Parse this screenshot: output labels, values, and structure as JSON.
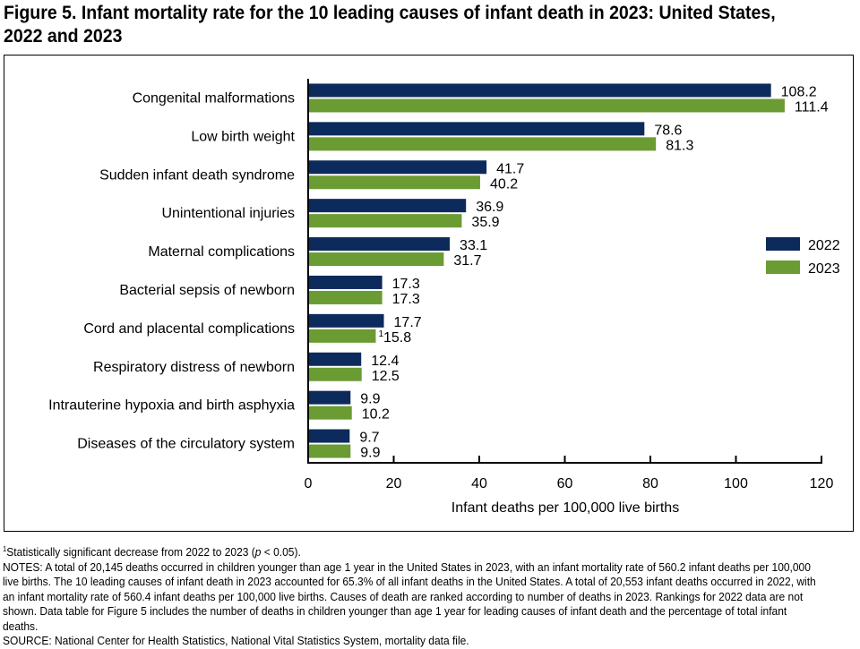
{
  "chart_data": {
    "type": "bar",
    "orientation": "horizontal",
    "title": "Figure 5. Infant mortality rate for the 10 leading causes of infant death in 2023: United States, 2022 and 2023",
    "xlabel": "Infant deaths per 100,000 live births",
    "ylabel": "",
    "xlim": [
      0,
      120
    ],
    "xticks": [
      "0",
      "20",
      "40",
      "60",
      "80",
      "100",
      "120"
    ],
    "grid": false,
    "legend_position": "right",
    "categories": [
      "Congenital malformations",
      "Low birth weight",
      "Sudden infant death syndrome",
      "Unintentional injuries",
      "Maternal complications",
      "Bacterial sepsis of newborn",
      "Cord and placental complications",
      "Respiratory distress of newborn",
      "Intrauterine hypoxia and birth asphyxia",
      "Diseases of the circulatory system"
    ],
    "series": [
      {
        "name": "2022",
        "color": "#0c2a5b",
        "values": [
          108.2,
          78.6,
          41.7,
          36.9,
          33.1,
          17.3,
          17.7,
          12.4,
          9.9,
          9.7
        ],
        "labels": [
          "108.2",
          "78.6",
          "41.7",
          "36.9",
          "33.1",
          "17.3",
          "17.7",
          "12.4",
          "9.9",
          "9.7"
        ]
      },
      {
        "name": "2023",
        "color": "#6b9b33",
        "values": [
          111.4,
          81.3,
          40.2,
          35.9,
          31.7,
          17.3,
          15.8,
          12.5,
          10.2,
          9.9
        ],
        "labels": [
          "111.4",
          "81.3",
          "40.2",
          "35.9",
          "31.7",
          "17.3",
          "15.8",
          "12.5",
          "10.2",
          "9.9"
        ]
      }
    ],
    "annotations": [
      {
        "category": "Cord and placental complications",
        "series": "2023",
        "footnote_marker": "1"
      }
    ]
  },
  "notes": {
    "footnote_marker": "1",
    "footnote": "Statistically significant decrease from 2022 to 2023 (",
    "footnote_p": "p",
    "footnote_end": " < 0.05).",
    "notes": "NOTES: A total of 20,145 deaths occurred in children younger than age 1 year in the United States in 2023, with an infant mortality rate of 560.2 infant deaths per 100,000 live births. The 10 leading causes of infant death in 2023 accounted for 65.3% of all infant deaths in the United States. A total of 20,553 infant deaths occurred in 2022, with an infant mortality rate of 560.4 infant deaths per 100,000 live births. Causes of death are ranked according to number of deaths in 2023. Rankings for 2022 data are not shown. Data table for Figure 5 includes the number of deaths in children younger than age 1 year for leading causes of infant death and the percentage of total infant deaths.",
    "source": "SOURCE: National Center for Health Statistics, National Vital Statistics System, mortality data file."
  }
}
